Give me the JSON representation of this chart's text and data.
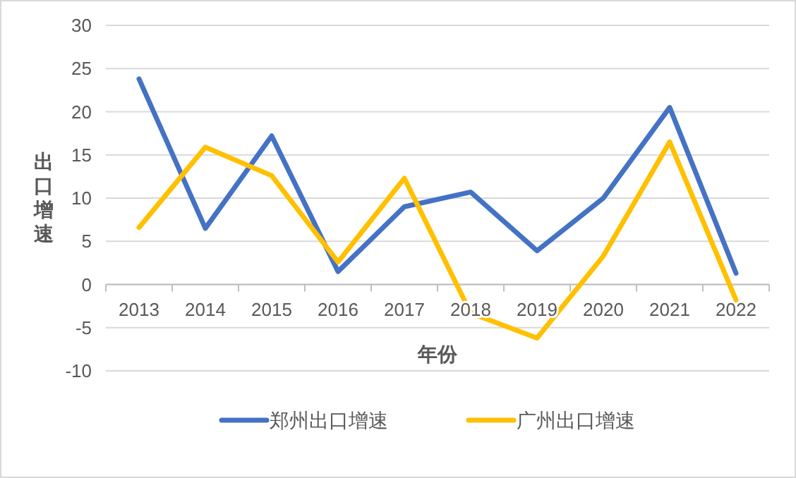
{
  "chart_data": {
    "type": "line",
    "xlabel": "年份",
    "ylabel": "出口增速",
    "categories": [
      "2013",
      "2014",
      "2015",
      "2016",
      "2017",
      "2018",
      "2019",
      "2020",
      "2021",
      "2022"
    ],
    "series": [
      {
        "name": "郑州出口增速",
        "color": "#4472c4",
        "values": [
          23.8,
          6.5,
          17.2,
          1.5,
          9.0,
          10.7,
          3.9,
          10.0,
          20.5,
          1.3
        ]
      },
      {
        "name": "广州出口增速",
        "color": "#ffc000",
        "values": [
          6.6,
          15.9,
          12.6,
          2.6,
          12.3,
          -3.3,
          -6.2,
          3.3,
          16.5,
          -1.8
        ]
      }
    ],
    "ylim": [
      -10,
      30
    ],
    "yticks": [
      -10,
      -5,
      0,
      5,
      10,
      15,
      20,
      25,
      30
    ],
    "grid": "y",
    "legend": "bottom",
    "marker": "none",
    "line_style": "solid"
  }
}
